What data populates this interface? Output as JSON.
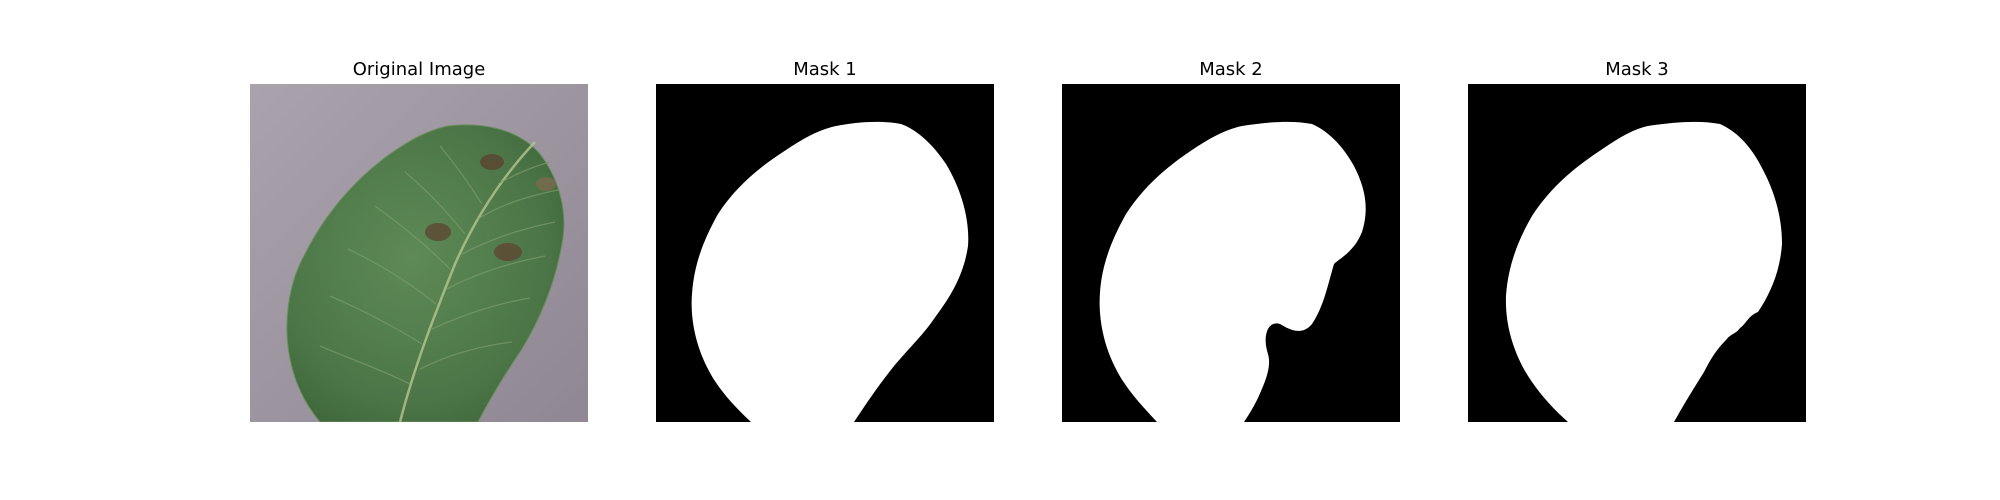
{
  "figure": {
    "background": "#ffffff",
    "panels": [
      {
        "title": "Original Image",
        "kind": "photo"
      },
      {
        "title": "Mask 1",
        "kind": "mask"
      },
      {
        "title": "Mask 2",
        "kind": "mask"
      },
      {
        "title": "Mask 3",
        "kind": "mask"
      }
    ]
  },
  "colors": {
    "mask_background": "#000000",
    "mask_foreground": "#ffffff",
    "photo_background": "#a7a0aa",
    "leaf": "#4f7b4a",
    "leaf_dark": "#3e6a3b",
    "leaf_spot": "#5d4a34"
  }
}
